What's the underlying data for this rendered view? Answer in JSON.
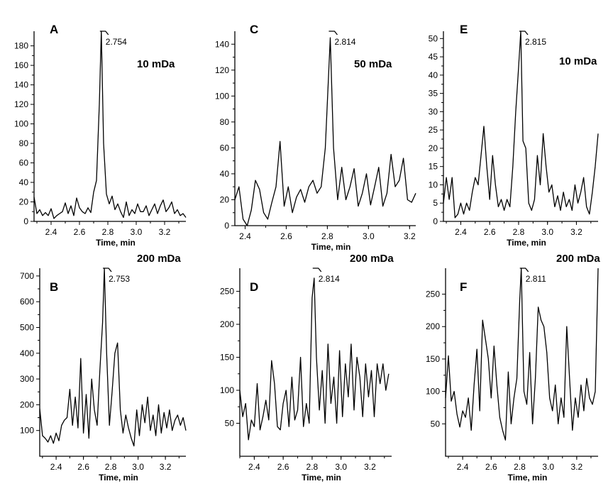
{
  "chart_data": [
    {
      "id": "A",
      "type": "line",
      "letter": "A",
      "condition": "10 mDa",
      "xlabel": "Time, min",
      "ylabel": "",
      "xlim": [
        2.28,
        3.35
      ],
      "ylim": [
        0,
        195
      ],
      "xticks": [
        2.4,
        2.6,
        2.8,
        3.0,
        3.2
      ],
      "xticklabels": [
        "2.4",
        "2.6",
        "2.8",
        "3.0",
        "3.2"
      ],
      "yticks": [
        0,
        20,
        40,
        60,
        80,
        100,
        120,
        140,
        160,
        180
      ],
      "yticklabels": [
        "0",
        "20",
        "40",
        "60",
        "80",
        "100",
        "120",
        "140",
        "160",
        "180"
      ],
      "peak_label": "2.754",
      "peak_x": 2.754,
      "x": [
        2.28,
        2.3,
        2.32,
        2.34,
        2.36,
        2.38,
        2.4,
        2.42,
        2.44,
        2.46,
        2.48,
        2.5,
        2.52,
        2.54,
        2.56,
        2.58,
        2.6,
        2.62,
        2.64,
        2.66,
        2.68,
        2.7,
        2.72,
        2.74,
        2.754,
        2.77,
        2.79,
        2.81,
        2.83,
        2.85,
        2.87,
        2.89,
        2.91,
        2.93,
        2.95,
        2.97,
        2.99,
        3.01,
        3.03,
        3.05,
        3.07,
        3.09,
        3.11,
        3.13,
        3.15,
        3.17,
        3.19,
        3.21,
        3.23,
        3.25,
        3.27,
        3.29,
        3.31,
        3.33,
        3.35
      ],
      "y": [
        25,
        8,
        12,
        6,
        9,
        6,
        13,
        3,
        6,
        8,
        10,
        19,
        8,
        16,
        6,
        24,
        14,
        10,
        8,
        14,
        9,
        30,
        42,
        120,
        195,
        80,
        28,
        18,
        26,
        12,
        18,
        10,
        4,
        20,
        6,
        12,
        8,
        18,
        10,
        10,
        16,
        6,
        12,
        18,
        8,
        16,
        22,
        10,
        14,
        20,
        8,
        12,
        6,
        8,
        4
      ]
    },
    {
      "id": "B",
      "type": "line",
      "letter": "B",
      "condition": "200 mDa",
      "xlabel": "Time, min",
      "ylabel": "",
      "xlim": [
        2.28,
        3.35
      ],
      "ylim": [
        0,
        730
      ],
      "xticks": [
        2.4,
        2.6,
        2.8,
        3.0,
        3.2
      ],
      "xticklabels": [
        "2.4",
        "2.6",
        "2.8",
        "3.0",
        "3.2"
      ],
      "yticks": [
        100,
        200,
        300,
        400,
        500,
        600,
        700
      ],
      "yticklabels": [
        "100",
        "200",
        "300",
        "400",
        "500",
        "600",
        "700"
      ],
      "peak_label": "2.753",
      "peak_x": 2.753,
      "x": [
        2.28,
        2.3,
        2.32,
        2.34,
        2.36,
        2.38,
        2.4,
        2.42,
        2.44,
        2.46,
        2.48,
        2.5,
        2.52,
        2.54,
        2.56,
        2.58,
        2.6,
        2.62,
        2.64,
        2.66,
        2.68,
        2.7,
        2.72,
        2.74,
        2.753,
        2.77,
        2.79,
        2.81,
        2.83,
        2.85,
        2.87,
        2.89,
        2.91,
        2.93,
        2.95,
        2.97,
        2.99,
        3.01,
        3.03,
        3.05,
        3.07,
        3.09,
        3.11,
        3.13,
        3.15,
        3.17,
        3.19,
        3.21,
        3.23,
        3.25,
        3.27,
        3.29,
        3.31,
        3.33,
        3.35
      ],
      "y": [
        185,
        80,
        70,
        55,
        80,
        50,
        90,
        60,
        120,
        140,
        150,
        260,
        120,
        230,
        110,
        380,
        90,
        240,
        70,
        300,
        180,
        120,
        330,
        520,
        730,
        400,
        120,
        250,
        400,
        440,
        180,
        90,
        160,
        110,
        70,
        40,
        180,
        80,
        200,
        130,
        230,
        100,
        160,
        80,
        200,
        90,
        170,
        110,
        180,
        100,
        140,
        160,
        120,
        150,
        100
      ]
    },
    {
      "id": "C",
      "type": "line",
      "letter": "C",
      "condition": "50 mDa",
      "xlabel": "Time, min",
      "ylabel": "",
      "xlim": [
        2.35,
        3.23
      ],
      "ylim": [
        0,
        150
      ],
      "xticks": [
        2.4,
        2.6,
        2.8,
        3.0,
        3.2
      ],
      "xticklabels": [
        "2.4",
        "2.6",
        "2.8",
        "3.0",
        "3.2"
      ],
      "yticks": [
        0,
        20,
        40,
        60,
        80,
        100,
        120,
        140
      ],
      "yticklabels": [
        "0",
        "20",
        "40",
        "60",
        "80",
        "100",
        "120",
        "140"
      ],
      "peak_label": "2.814",
      "peak_x": 2.814,
      "x": [
        2.35,
        2.37,
        2.39,
        2.41,
        2.43,
        2.45,
        2.47,
        2.49,
        2.51,
        2.53,
        2.55,
        2.57,
        2.59,
        2.61,
        2.63,
        2.65,
        2.67,
        2.69,
        2.71,
        2.73,
        2.75,
        2.77,
        2.79,
        2.814,
        2.83,
        2.85,
        2.87,
        2.89,
        2.91,
        2.93,
        2.95,
        2.97,
        2.99,
        3.01,
        3.03,
        3.05,
        3.07,
        3.09,
        3.11,
        3.13,
        3.15,
        3.17,
        3.19,
        3.21,
        3.23
      ],
      "y": [
        20,
        30,
        5,
        0,
        12,
        35,
        28,
        10,
        5,
        18,
        30,
        65,
        15,
        30,
        10,
        22,
        28,
        18,
        30,
        35,
        25,
        30,
        60,
        145,
        60,
        20,
        45,
        20,
        30,
        44,
        15,
        25,
        40,
        16,
        30,
        45,
        15,
        25,
        55,
        30,
        35,
        52,
        20,
        18,
        25
      ]
    },
    {
      "id": "D",
      "type": "line",
      "letter": "D",
      "condition": "200 mDa",
      "xlabel": "Time, min",
      "ylabel": "",
      "xlim": [
        2.3,
        3.35
      ],
      "ylim": [
        0,
        285
      ],
      "xticks": [
        2.4,
        2.6,
        2.8,
        3.0,
        3.2
      ],
      "xticklabels": [
        "2.4",
        "2.6",
        "2.8",
        "3.0",
        "3.2"
      ],
      "yticks": [
        50,
        100,
        150,
        200,
        250
      ],
      "yticklabels": [
        "50",
        "100",
        "150",
        "200",
        "250"
      ],
      "peak_label": "2.814",
      "peak_x": 2.814,
      "x": [
        2.3,
        2.32,
        2.34,
        2.36,
        2.38,
        2.4,
        2.42,
        2.44,
        2.46,
        2.48,
        2.5,
        2.52,
        2.54,
        2.56,
        2.58,
        2.6,
        2.62,
        2.64,
        2.66,
        2.68,
        2.7,
        2.72,
        2.74,
        2.76,
        2.78,
        2.8,
        2.814,
        2.83,
        2.85,
        2.87,
        2.89,
        2.91,
        2.93,
        2.95,
        2.97,
        2.99,
        3.01,
        3.03,
        3.05,
        3.07,
        3.09,
        3.11,
        3.13,
        3.15,
        3.17,
        3.19,
        3.21,
        3.23,
        3.25,
        3.27,
        3.29,
        3.31,
        3.33
      ],
      "y": [
        100,
        60,
        80,
        25,
        55,
        45,
        110,
        40,
        60,
        85,
        55,
        145,
        110,
        45,
        40,
        80,
        100,
        45,
        120,
        55,
        70,
        150,
        45,
        80,
        50,
        240,
        270,
        150,
        70,
        130,
        50,
        170,
        80,
        120,
        50,
        160,
        60,
        140,
        90,
        170,
        70,
        150,
        120,
        60,
        140,
        90,
        130,
        60,
        140,
        110,
        140,
        100,
        125
      ]
    },
    {
      "id": "E",
      "type": "line",
      "letter": "E",
      "condition": "10 mDa",
      "xlabel": "Time, min",
      "ylabel": "",
      "xlim": [
        2.28,
        3.35
      ],
      "ylim": [
        0,
        52
      ],
      "xticks": [
        2.4,
        2.6,
        2.8,
        3.0,
        3.2
      ],
      "xticklabels": [
        "2.4",
        "2.6",
        "2.8",
        "3.0",
        "3.2"
      ],
      "yticks": [
        0,
        5,
        10,
        15,
        20,
        25,
        30,
        35,
        40,
        45,
        50
      ],
      "yticklabels": [
        "0",
        "5",
        "10",
        "15",
        "20",
        "25",
        "30",
        "35",
        "40",
        "45",
        "50"
      ],
      "peak_label": "2.815",
      "peak_x": 2.815,
      "x": [
        2.28,
        2.3,
        2.32,
        2.34,
        2.36,
        2.38,
        2.4,
        2.42,
        2.44,
        2.46,
        2.48,
        2.5,
        2.52,
        2.54,
        2.56,
        2.58,
        2.6,
        2.62,
        2.64,
        2.66,
        2.68,
        2.7,
        2.72,
        2.74,
        2.76,
        2.78,
        2.8,
        2.815,
        2.83,
        2.85,
        2.87,
        2.89,
        2.91,
        2.93,
        2.95,
        2.97,
        2.99,
        3.01,
        3.03,
        3.05,
        3.07,
        3.09,
        3.11,
        3.13,
        3.15,
        3.17,
        3.19,
        3.21,
        3.23,
        3.25,
        3.27,
        3.29,
        3.31,
        3.33,
        3.35
      ],
      "y": [
        5,
        12,
        6,
        12,
        1,
        2,
        5,
        2,
        5,
        3,
        8,
        12,
        10,
        18,
        26,
        15,
        6,
        18,
        10,
        4,
        6,
        3,
        6,
        4,
        15,
        30,
        42,
        52,
        22,
        20,
        5,
        3,
        6,
        18,
        10,
        24,
        15,
        8,
        10,
        4,
        7,
        3,
        8,
        4,
        6,
        3,
        10,
        5,
        8,
        12,
        4,
        2,
        8,
        15,
        24
      ]
    },
    {
      "id": "F",
      "type": "line",
      "letter": "F",
      "condition": "200 mDa",
      "xlabel": "Time, min",
      "ylabel": "",
      "xlim": [
        2.28,
        3.35
      ],
      "ylim": [
        0,
        290
      ],
      "xticks": [
        2.4,
        2.6,
        2.8,
        3.0,
        3.2
      ],
      "xticklabels": [
        "2.4",
        "2.6",
        "2.8",
        "3.0",
        "3.2"
      ],
      "yticks": [
        50,
        100,
        150,
        200,
        250
      ],
      "yticklabels": [
        "50",
        "100",
        "150",
        "200",
        "250"
      ],
      "peak_label": "2.811",
      "peak_x": 2.811,
      "x": [
        2.28,
        2.3,
        2.32,
        2.34,
        2.36,
        2.38,
        2.4,
        2.42,
        2.44,
        2.46,
        2.48,
        2.5,
        2.52,
        2.54,
        2.56,
        2.58,
        2.6,
        2.62,
        2.64,
        2.66,
        2.68,
        2.7,
        2.72,
        2.74,
        2.76,
        2.78,
        2.8,
        2.811,
        2.83,
        2.85,
        2.87,
        2.89,
        2.91,
        2.93,
        2.95,
        2.97,
        2.99,
        3.01,
        3.03,
        3.05,
        3.07,
        3.09,
        3.11,
        3.13,
        3.15,
        3.17,
        3.19,
        3.21,
        3.23,
        3.25,
        3.27,
        3.29,
        3.31,
        3.33,
        3.35
      ],
      "y": [
        90,
        155,
        85,
        100,
        65,
        45,
        70,
        60,
        90,
        40,
        110,
        165,
        70,
        210,
        180,
        150,
        90,
        170,
        110,
        60,
        40,
        25,
        130,
        50,
        90,
        120,
        240,
        290,
        100,
        80,
        160,
        50,
        120,
        230,
        210,
        200,
        160,
        90,
        70,
        110,
        50,
        90,
        60,
        200,
        120,
        40,
        90,
        60,
        110,
        70,
        120,
        90,
        80,
        100,
        290
      ]
    }
  ]
}
